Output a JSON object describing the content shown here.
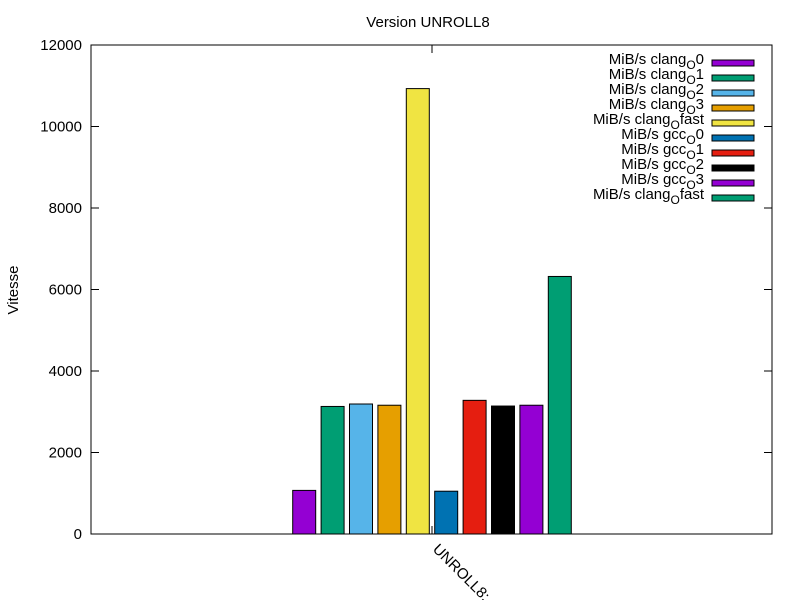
{
  "chart_data": {
    "type": "bar",
    "title": "Version UNROLL8",
    "ylabel": "Vitesse",
    "xlabel": "",
    "categories": [
      "UNROLL8:"
    ],
    "ylim": [
      0,
      12000
    ],
    "yticks": [
      0,
      2000,
      4000,
      6000,
      8000,
      10000,
      12000
    ],
    "grid": false,
    "legend_position": "top-right",
    "series": [
      {
        "name": "MiB/s clang_O0",
        "legend_main": "MiB/s clang",
        "legend_sub": "O",
        "legend_tail": "0",
        "color": "#9400d3",
        "values": [
          1070
        ]
      },
      {
        "name": "MiB/s clang_O1",
        "legend_main": "MiB/s clang",
        "legend_sub": "O",
        "legend_tail": "1",
        "color": "#009e73",
        "values": [
          3130
        ]
      },
      {
        "name": "MiB/s clang_O2",
        "legend_main": "MiB/s clang",
        "legend_sub": "O",
        "legend_tail": "2",
        "color": "#56b4e9",
        "values": [
          3190
        ]
      },
      {
        "name": "MiB/s clang_O3",
        "legend_main": "MiB/s clang",
        "legend_sub": "O",
        "legend_tail": "3",
        "color": "#e69f00",
        "values": [
          3160
        ]
      },
      {
        "name": "MiB/s clang_Ofast",
        "legend_main": "MiB/s clang",
        "legend_sub": "O",
        "legend_tail": "fast",
        "color": "#f0e442",
        "values": [
          10930
        ]
      },
      {
        "name": "MiB/s gcc_O0",
        "legend_main": "MiB/s gcc",
        "legend_sub": "O",
        "legend_tail": "0",
        "color": "#0072b2",
        "values": [
          1050
        ]
      },
      {
        "name": "MiB/s gcc_O1",
        "legend_main": "MiB/s gcc",
        "legend_sub": "O",
        "legend_tail": "1",
        "color": "#e51e10",
        "values": [
          3280
        ]
      },
      {
        "name": "MiB/s gcc_O2",
        "legend_main": "MiB/s gcc",
        "legend_sub": "O",
        "legend_tail": "2",
        "color": "#000000",
        "values": [
          3140
        ]
      },
      {
        "name": "MiB/s gcc_O3",
        "legend_main": "MiB/s gcc",
        "legend_sub": "O",
        "legend_tail": "3",
        "color": "#9400d3",
        "values": [
          3160
        ]
      },
      {
        "name": "MiB/s clang_Ofast",
        "legend_main": "MiB/s clang",
        "legend_sub": "O",
        "legend_tail": "fast",
        "color": "#009e73",
        "values": [
          6320
        ]
      }
    ]
  }
}
